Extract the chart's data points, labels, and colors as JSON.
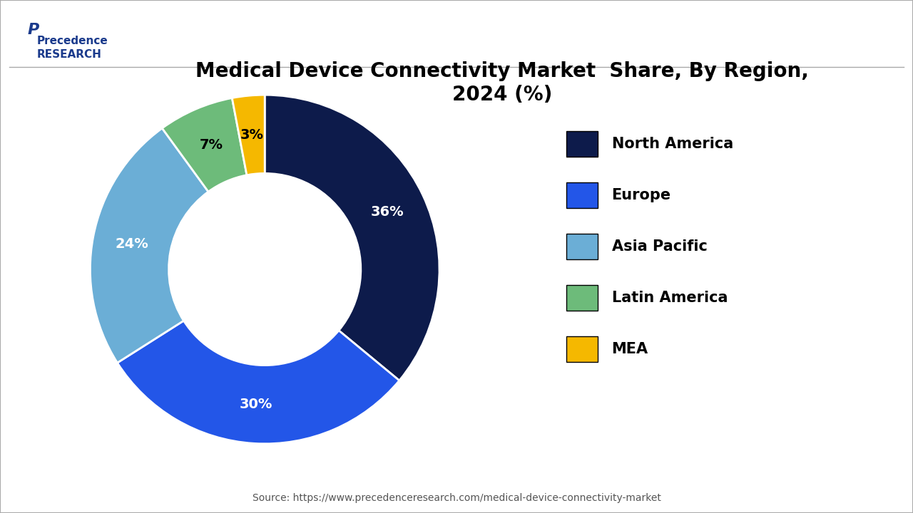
{
  "title": "Medical Device Connectivity Market  Share, By Region,\n2024 (%)",
  "segments": [
    {
      "label": "North America",
      "value": 36,
      "color": "#0d1b4b",
      "text_color": "white"
    },
    {
      "label": "Europe",
      "value": 30,
      "color": "#2356e8",
      "text_color": "white"
    },
    {
      "label": "Asia Pacific",
      "value": 24,
      "color": "#6baed6",
      "text_color": "white"
    },
    {
      "label": "Latin America",
      "value": 7,
      "color": "#6dbb7a",
      "text_color": "black"
    },
    {
      "label": "MEA",
      "value": 3,
      "color": "#f5b800",
      "text_color": "black"
    }
  ],
  "source_text": "Source: https://www.precedenceresearch.com/medical-device-connectivity-market",
  "background_color": "#ffffff",
  "border_color": "#cccccc",
  "title_fontsize": 20,
  "legend_fontsize": 15,
  "label_fontsize": 14
}
